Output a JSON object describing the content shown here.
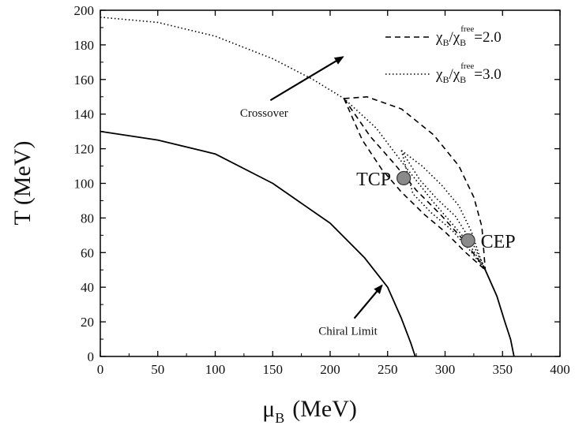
{
  "chart_data": {
    "type": "line",
    "xlabel_main": "μ",
    "xlabel_sub": "B",
    "xlabel_unit": "(MeV)",
    "ylabel": "T (MeV)",
    "xlim": [
      0,
      400
    ],
    "ylim": [
      0,
      200
    ],
    "xticks": [
      0,
      50,
      100,
      150,
      200,
      250,
      300,
      350,
      400
    ],
    "yticks": [
      0,
      20,
      40,
      60,
      80,
      100,
      120,
      140,
      160,
      180,
      200
    ],
    "grid": false,
    "legend_position": "top-right",
    "legend": [
      {
        "style": "dashed",
        "chi": "χ",
        "sub": "B",
        "slash": "/",
        "sup": "free",
        "value": "=2.0"
      },
      {
        "style": "dotted",
        "chi": "χ",
        "sub": "B",
        "slash": "/",
        "sup": "free",
        "value": "=3.0"
      }
    ],
    "series": [
      {
        "style": "solid",
        "points": [
          [
            0,
            130
          ],
          [
            50,
            125
          ],
          [
            100,
            117
          ],
          [
            150,
            100
          ],
          [
            200,
            77
          ],
          [
            230,
            57
          ],
          [
            250,
            40
          ],
          [
            262,
            22
          ],
          [
            270,
            8
          ],
          [
            274,
            0
          ]
        ]
      },
      {
        "style": "solid",
        "points": [
          [
            335,
            50
          ],
          [
            345,
            35
          ],
          [
            352,
            20
          ],
          [
            357,
            10
          ],
          [
            360,
            0
          ]
        ]
      },
      {
        "style": "dotted",
        "points": [
          [
            0,
            196
          ],
          [
            50,
            193
          ],
          [
            100,
            185
          ],
          [
            150,
            172
          ],
          [
            185,
            160
          ],
          [
            212,
            149
          ],
          [
            240,
            132
          ],
          [
            265,
            110
          ],
          [
            290,
            89
          ],
          [
            320,
            66
          ],
          [
            335,
            50
          ]
        ]
      },
      {
        "style": "dashed",
        "points": [
          [
            212,
            149
          ],
          [
            232,
            150
          ],
          [
            262,
            143
          ],
          [
            290,
            128
          ],
          [
            312,
            110
          ],
          [
            325,
            92
          ],
          [
            332,
            75
          ],
          [
            335,
            50
          ]
        ]
      },
      {
        "style": "dashed",
        "points": [
          [
            212,
            149
          ],
          [
            235,
            127
          ],
          [
            255,
            112
          ],
          [
            275,
            96
          ],
          [
            296,
            82
          ],
          [
            315,
            68
          ],
          [
            330,
            55
          ],
          [
            335,
            50
          ]
        ]
      },
      {
        "style": "dashed",
        "points": [
          [
            212,
            149
          ],
          [
            228,
            125
          ],
          [
            245,
            108
          ],
          [
            262,
            95
          ],
          [
            282,
            82
          ],
          [
            300,
            72
          ],
          [
            318,
            60
          ],
          [
            335,
            50
          ]
        ]
      },
      {
        "style": "dotted",
        "points": [
          [
            262,
            119
          ],
          [
            280,
            110
          ],
          [
            297,
            99
          ],
          [
            312,
            87
          ],
          [
            323,
            72
          ],
          [
            330,
            58
          ],
          [
            335,
            50
          ]
        ]
      },
      {
        "style": "dotted",
        "points": [
          [
            262,
            119
          ],
          [
            278,
            102
          ],
          [
            293,
            91
          ],
          [
            309,
            81
          ],
          [
            325,
            64
          ],
          [
            335,
            50
          ]
        ]
      },
      {
        "style": "dotted",
        "points": [
          [
            262,
            119
          ],
          [
            272,
            94
          ],
          [
            288,
            83
          ],
          [
            306,
            73
          ],
          [
            322,
            61
          ],
          [
            335,
            50
          ]
        ]
      }
    ],
    "points": [
      {
        "label": "TCP",
        "x": 264,
        "y": 103
      },
      {
        "label": "CEP",
        "x": 320,
        "y": 67
      }
    ],
    "annotations": [
      {
        "text": "Crossover",
        "arrow_from": [
          148,
          148
        ],
        "arrow_to": [
          211,
          173
        ]
      },
      {
        "text": "Chiral Limit",
        "arrow_from": [
          221,
          22
        ],
        "arrow_to": [
          245,
          41
        ]
      }
    ]
  }
}
